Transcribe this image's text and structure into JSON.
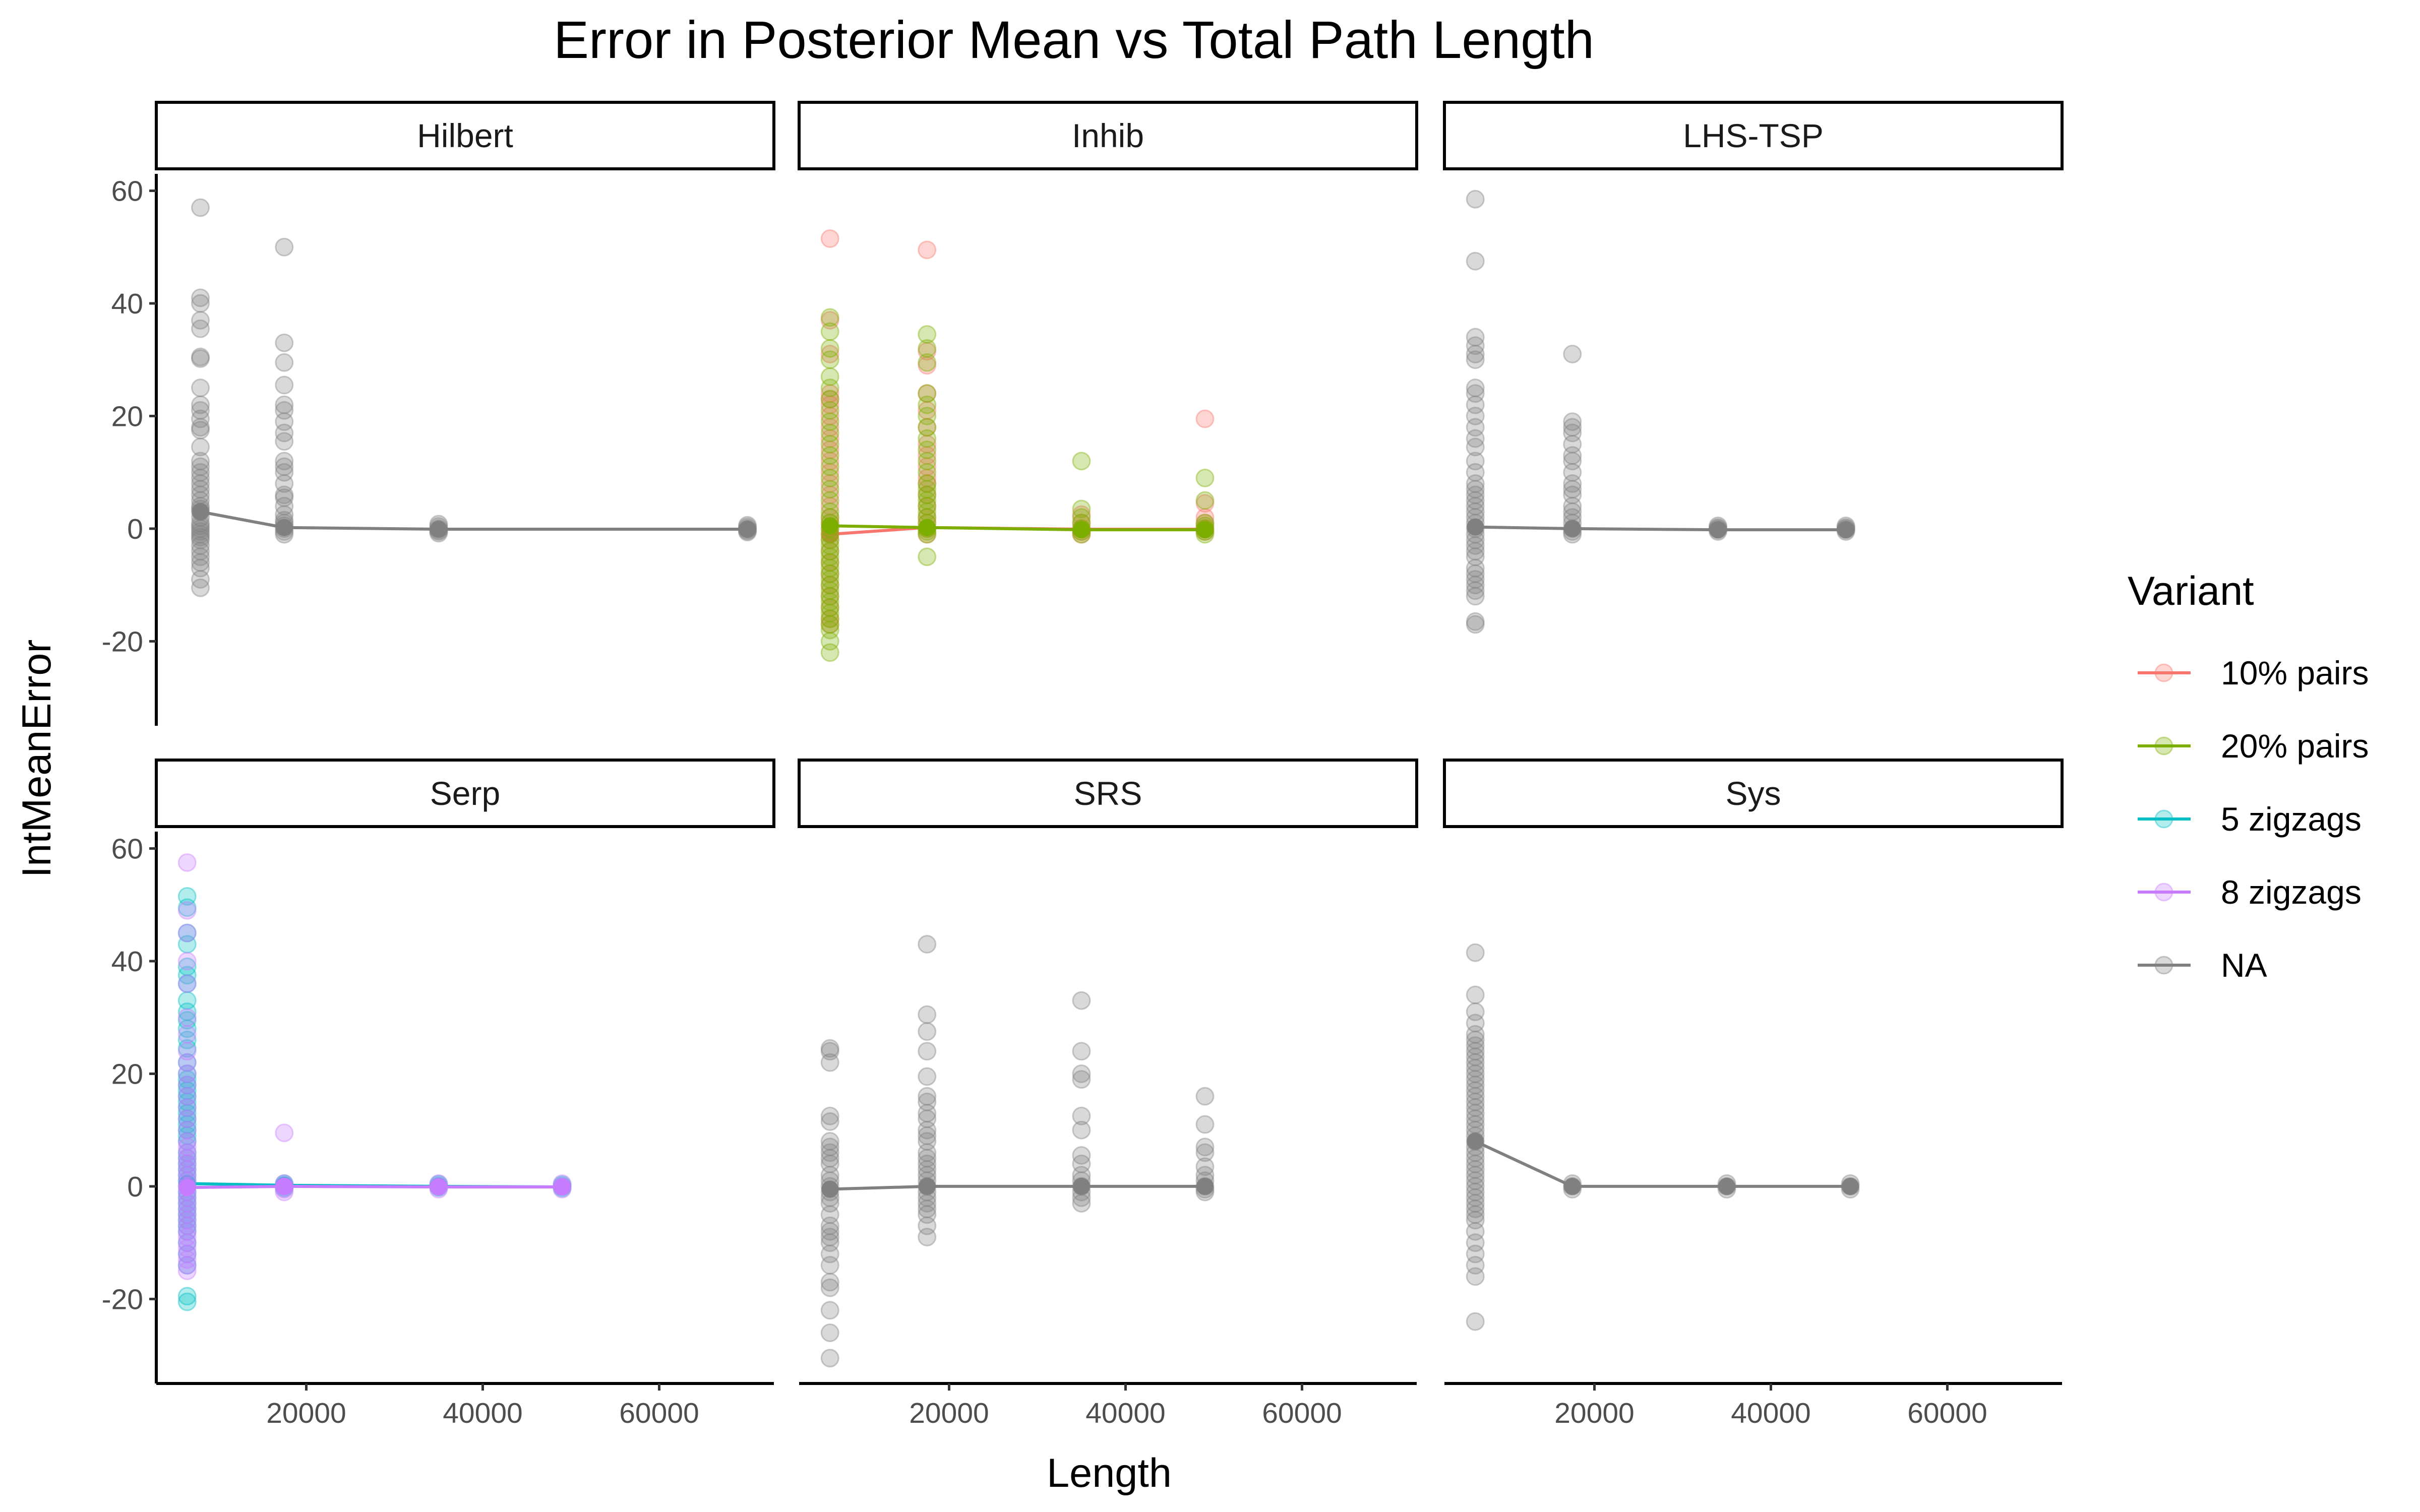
{
  "chart_data": {
    "type": "scatter",
    "title": "Error in Posterior Mean vs Total Path Length",
    "xlabel": "Length",
    "ylabel": "IntMeanError",
    "xlim": [
      3000,
      73000
    ],
    "ylim": [
      -35,
      63
    ],
    "x_ticks": [
      20000,
      40000,
      60000
    ],
    "x_tick_labels": [
      "20000",
      "40000",
      "60000"
    ],
    "y_ticks": [
      -20,
      0,
      20,
      40,
      60
    ],
    "y_tick_labels": [
      "-20",
      "0",
      "20",
      "40",
      "60"
    ],
    "grid": false,
    "legend": {
      "title": "Variant",
      "position": "right",
      "items": [
        {
          "label": "10% pairs",
          "color": "#F8766D"
        },
        {
          "label": "20% pairs",
          "color": "#7CAE00"
        },
        {
          "label": "5 zigzags",
          "color": "#00BFC4"
        },
        {
          "label": "8 zigzags",
          "color": "#C77CFF"
        },
        {
          "label": "NA",
          "color": "#808080"
        }
      ]
    },
    "panels": [
      {
        "name": "Hilbert",
        "series": [
          {
            "variant": "NA",
            "color": "#808080",
            "line": [
              [
                8000,
                3
              ],
              [
                17500,
                0.2
              ],
              [
                35000,
                -0.1
              ],
              [
                70000,
                -0.1
              ]
            ],
            "points": [
              [
                8000,
                [
                  57,
                  41,
                  40,
                  37,
                  35.5,
                  30.5,
                  30.2,
                  25,
                  22,
                  21,
                  19.5,
                  18,
                  17.5,
                  14.5,
                  12,
                  11,
                  10,
                  9,
                  8,
                  7,
                  6,
                  5,
                  4,
                  3.5,
                  3,
                  2,
                  1,
                  0.5,
                  0,
                  -0.5,
                  -1,
                  -1.5,
                  -2,
                  -3,
                  -4,
                  -5,
                  -6,
                  -7,
                  -9,
                  -10.5
                ]
              ],
              [
                17500,
                [
                  50,
                  33,
                  29.5,
                  25.5,
                  22,
                  21,
                  19,
                  17,
                  15.5,
                  12,
                  11,
                  10,
                  8,
                  6,
                  5.5,
                  4,
                  2.5,
                  1.5,
                  1,
                  0.5,
                  0,
                  -0.5,
                  -1
                ]
              ],
              [
                35000,
                [
                  0.8,
                  0.4,
                  0,
                  -0.3,
                  -0.5,
                  -0.8
                ]
              ],
              [
                70000,
                [
                  0.6,
                  0.3,
                  0,
                  -0.2,
                  -0.4,
                  -0.6
                ]
              ]
            ]
          }
        ]
      },
      {
        "name": "Inhib",
        "series": [
          {
            "variant": "10% pairs",
            "color": "#F8766D",
            "line": [
              [
                6500,
                -1
              ],
              [
                17500,
                0.2
              ],
              [
                35000,
                -0.1
              ],
              [
                49000,
                -0.1
              ]
            ],
            "points": [
              [
                6500,
                [
                  51.5,
                  37,
                  31,
                  24,
                  23,
                  22,
                  20,
                  18,
                  16,
                  14,
                  12,
                  10,
                  8,
                  6,
                  4,
                  2,
                  1,
                  0,
                  -1,
                  -2,
                  -4,
                  -6,
                  -8,
                  -10,
                  -12,
                  -14,
                  -16,
                  -17
                ]
              ],
              [
                17500,
                [
                  49.5,
                  31.5,
                  29,
                  24,
                  21,
                  18,
                  15,
                  13,
                  11,
                  9,
                  8,
                  6,
                  4,
                  2,
                  1,
                  0,
                  -1
                ]
              ],
              [
                35000,
                [
                  2.5,
                  1,
                  0,
                  -0.5,
                  -1
                ]
              ],
              [
                49000,
                [
                  19.5,
                  4.5,
                  2,
                  1,
                  0,
                  -0.5
                ]
              ]
            ]
          },
          {
            "variant": "20% pairs",
            "color": "#7CAE00",
            "line": [
              [
                6500,
                0.5
              ],
              [
                17500,
                0.2
              ],
              [
                35000,
                -0.2
              ],
              [
                49000,
                -0.2
              ]
            ],
            "points": [
              [
                6500,
                [
                  37.5,
                  35,
                  32,
                  30,
                  27,
                  25,
                  23,
                  21,
                  19,
                  17,
                  15,
                  13,
                  11,
                  9,
                  7,
                  5,
                  3,
                  2,
                  1,
                  0,
                  -1,
                  -2,
                  -3,
                  -4,
                  -5,
                  -6,
                  -7,
                  -8,
                  -9,
                  -10,
                  -11,
                  -12,
                  -13,
                  -14,
                  -15,
                  -16,
                  -17,
                  -18,
                  -20,
                  -22
                ]
              ],
              [
                17500,
                [
                  34.5,
                  32,
                  29.5,
                  24,
                  22,
                  20,
                  18,
                  16,
                  14,
                  12,
                  10,
                  8,
                  7,
                  6,
                  5,
                  4,
                  3,
                  2,
                  1,
                  0,
                  -0.5,
                  -1,
                  -5
                ]
              ],
              [
                35000,
                [
                  12,
                  3.5,
                  2,
                  1,
                  0,
                  -0.5,
                  -1
                ]
              ],
              [
                49000,
                [
                  9,
                  5,
                  1,
                  0.5,
                  0,
                  -0.5,
                  -1
                ]
              ]
            ]
          }
        ]
      },
      {
        "name": "LHS-TSP",
        "series": [
          {
            "variant": "NA",
            "color": "#808080",
            "line": [
              [
                6500,
                0.3
              ],
              [
                17500,
                0
              ],
              [
                34000,
                -0.2
              ],
              [
                48500,
                -0.2
              ]
            ],
            "points": [
              [
                6500,
                [
                  58.5,
                  47.5,
                  34,
                  32.5,
                  31,
                  30,
                  25,
                  24,
                  22,
                  20,
                  18,
                  16,
                  14.5,
                  12,
                  10,
                  8,
                  7,
                  6,
                  5,
                  4,
                  3,
                  2,
                  1,
                  0,
                  -1,
                  -2,
                  -3,
                  -4,
                  -5,
                  -7,
                  -8,
                  -9,
                  -10,
                  -11,
                  -12,
                  -16.5,
                  -17
                ]
              ],
              [
                17500,
                [
                  31,
                  19,
                  18,
                  17,
                  15,
                  13,
                  12,
                  10,
                  8,
                  7,
                  6,
                  4,
                  3,
                  2,
                  1,
                  0,
                  -0.5,
                  -1
                ]
              ],
              [
                34000,
                [
                  0.5,
                  0.2,
                  0,
                  -0.2,
                  -0.5
                ]
              ],
              [
                48500,
                [
                  0.5,
                  0.2,
                  0,
                  -0.2,
                  -0.5
                ]
              ]
            ]
          }
        ]
      },
      {
        "name": "Serp",
        "series": [
          {
            "variant": "5 zigzags",
            "color": "#00BFC4",
            "line": [
              [
                6500,
                0.5
              ],
              [
                17500,
                0.2
              ],
              [
                35000,
                0
              ],
              [
                49000,
                -0.1
              ]
            ],
            "points": [
              [
                6500,
                [
                  51.5,
                  49.5,
                  45,
                  43,
                  39,
                  37.5,
                  36,
                  33,
                  31,
                  29.5,
                  28,
                  26,
                  24.5,
                  22,
                  20,
                  19,
                  18,
                  17,
                  16,
                  15,
                  14,
                  13,
                  12,
                  11,
                  10,
                  9,
                  8,
                  6,
                  5,
                  4,
                  3,
                  2,
                  1,
                  0,
                  -1,
                  -2,
                  -3,
                  -4,
                  -5,
                  -6,
                  -7,
                  -8,
                  -10,
                  -12,
                  -14,
                  -19.5,
                  -20.5
                ]
              ],
              [
                17500,
                [
                  0.5,
                  0.2,
                  0,
                  -0.3
                ]
              ],
              [
                35000,
                [
                  0.4,
                  0.1,
                  -0.2
                ]
              ],
              [
                49000,
                [
                  0.3,
                  0,
                  -0.3
                ]
              ]
            ]
          },
          {
            "variant": "8 zigzags",
            "color": "#C77CFF",
            "line": [
              [
                6500,
                -0.2
              ],
              [
                17500,
                0
              ],
              [
                35000,
                -0.1
              ],
              [
                49000,
                -0.1
              ]
            ],
            "points": [
              [
                6500,
                [
                  57.5,
                  49,
                  45,
                  40,
                  36,
                  30,
                  27,
                  24,
                  22,
                  20,
                  18,
                  16,
                  14,
                  12,
                  10,
                  8,
                  7,
                  6,
                  5,
                  4,
                  3,
                  2,
                  1,
                  0,
                  -1,
                  -2,
                  -3,
                  -4,
                  -5,
                  -6,
                  -7,
                  -8,
                  -9,
                  -10,
                  -11,
                  -12,
                  -13,
                  -14,
                  -15
                ]
              ],
              [
                17500,
                [
                  9.5,
                  0.5,
                  0,
                  -0.5,
                  -1
                ]
              ],
              [
                35000,
                [
                  0.5,
                  0,
                  -0.5
                ]
              ],
              [
                49000,
                [
                  0.5,
                  0,
                  -0.5
                ]
              ]
            ]
          }
        ]
      },
      {
        "name": "SRS",
        "series": [
          {
            "variant": "NA",
            "color": "#808080",
            "line": [
              [
                6500,
                -0.5
              ],
              [
                17500,
                0
              ],
              [
                35000,
                0
              ],
              [
                49000,
                0
              ]
            ],
            "points": [
              [
                6500,
                [
                  24.5,
                  24,
                  22,
                  12.5,
                  11.5,
                  8,
                  7,
                  6,
                  5,
                  4,
                  2,
                  1,
                  0,
                  -1,
                  -2,
                  -3,
                  -5,
                  -7,
                  -8,
                  -9,
                  -10,
                  -12,
                  -14,
                  -17,
                  -18,
                  -22,
                  -26,
                  -30.5
                ]
              ],
              [
                17500,
                [
                  43,
                  30.5,
                  27.5,
                  24,
                  19.5,
                  16,
                  15,
                  13,
                  12,
                  10,
                  9,
                  8,
                  6,
                  5,
                  4,
                  3,
                  2,
                  1,
                  0,
                  -1,
                  -2,
                  -3,
                  -4,
                  -5,
                  -7,
                  -9
                ]
              ],
              [
                35000,
                [
                  33,
                  24,
                  20,
                  19,
                  12.5,
                  10,
                  5.5,
                  4,
                  2,
                  1,
                  0,
                  -1,
                  -2,
                  -3
                ]
              ],
              [
                49000,
                [
                  16,
                  11,
                  7,
                  6,
                  3.5,
                  2,
                  1,
                  0,
                  -0.5,
                  -1
                ]
              ]
            ]
          }
        ]
      },
      {
        "name": "Sys",
        "series": [
          {
            "variant": "NA",
            "color": "#808080",
            "line": [
              [
                6500,
                8
              ],
              [
                17500,
                0
              ],
              [
                35000,
                0
              ],
              [
                49000,
                0
              ]
            ],
            "points": [
              [
                6500,
                [
                  41.5,
                  34,
                  31,
                  29,
                  27,
                  26,
                  25,
                  24,
                  23,
                  22,
                  21,
                  20,
                  19,
                  18,
                  17,
                  16,
                  15,
                  14,
                  13,
                  12,
                  11,
                  10,
                  9,
                  8,
                  7,
                  6,
                  5,
                  4,
                  3,
                  2,
                  1,
                  0,
                  -1,
                  -2,
                  -3,
                  -4,
                  -5,
                  -6,
                  -8,
                  -10,
                  -12,
                  -14,
                  -16,
                  -24
                ]
              ],
              [
                17500,
                [
                  0.5,
                  0,
                  -0.5
                ]
              ],
              [
                35000,
                [
                  0.5,
                  0,
                  -0.5
                ]
              ],
              [
                49000,
                [
                  0.5,
                  0,
                  -0.5
                ]
              ]
            ]
          }
        ]
      }
    ]
  }
}
